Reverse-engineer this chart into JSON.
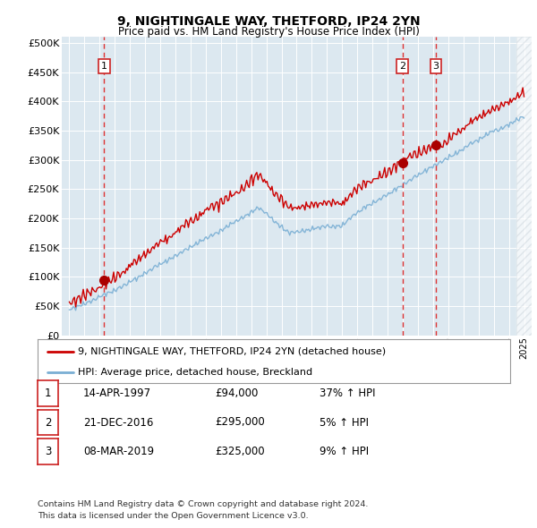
{
  "title1": "9, NIGHTINGALE WAY, THETFORD, IP24 2YN",
  "title2": "Price paid vs. HM Land Registry's House Price Index (HPI)",
  "ylabel_ticks": [
    "£0",
    "£50K",
    "£100K",
    "£150K",
    "£200K",
    "£250K",
    "£300K",
    "£350K",
    "£400K",
    "£450K",
    "£500K"
  ],
  "ytick_values": [
    0,
    50000,
    100000,
    150000,
    200000,
    250000,
    300000,
    350000,
    400000,
    450000,
    500000
  ],
  "xlim": [
    1994.5,
    2025.5
  ],
  "ylim": [
    0,
    510000
  ],
  "plot_bg_color": "#dce8f0",
  "grid_color": "#ffffff",
  "red_line_color": "#cc0000",
  "blue_line_color": "#7aafd4",
  "marker_color": "#aa0000",
  "dashed_line_color": "#dd3333",
  "transaction_markers": [
    {
      "year": 1997.29,
      "price": 94000,
      "label": "1"
    },
    {
      "year": 2016.97,
      "price": 295000,
      "label": "2"
    },
    {
      "year": 2019.19,
      "price": 325000,
      "label": "3"
    }
  ],
  "legend_entries": [
    "9, NIGHTINGALE WAY, THETFORD, IP24 2YN (detached house)",
    "HPI: Average price, detached house, Breckland"
  ],
  "table_data": [
    {
      "num": "1",
      "date": "14-APR-1997",
      "price": "£94,000",
      "change": "37% ↑ HPI"
    },
    {
      "num": "2",
      "date": "21-DEC-2016",
      "price": "£295,000",
      "change": "5% ↑ HPI"
    },
    {
      "num": "3",
      "date": "08-MAR-2019",
      "price": "£325,000",
      "change": "9% ↑ HPI"
    }
  ],
  "footer": "Contains HM Land Registry data © Crown copyright and database right 2024.\nThis data is licensed under the Open Government Licence v3.0."
}
